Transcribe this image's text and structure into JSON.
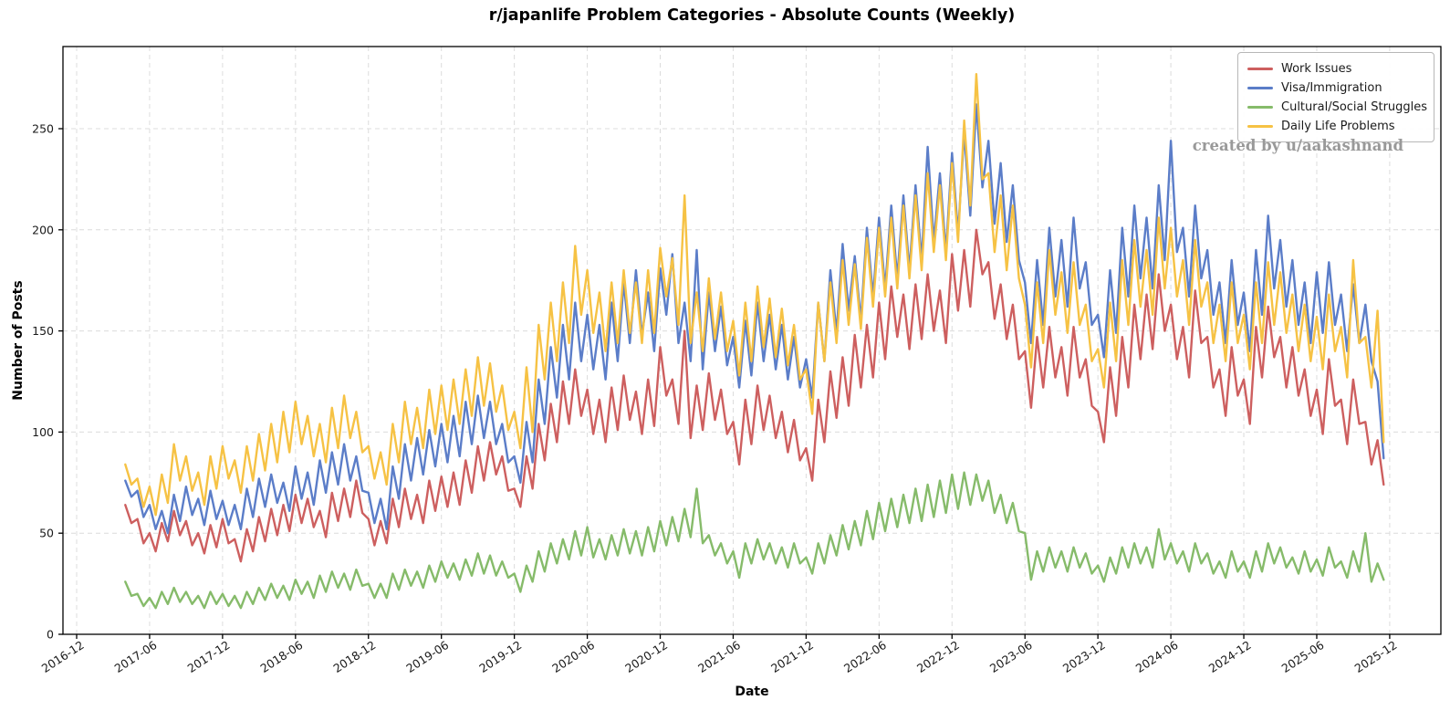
{
  "watermark": "created by u/aakashnand",
  "colors": {
    "grid": "#dcdcdc",
    "spine": "#000000",
    "tick_label": "#1a1a1a",
    "watermark": "#999999",
    "background": "#ffffff"
  },
  "chart_data": {
    "type": "line",
    "title": "r/japanlife Problem Categories - Absolute Counts (Weekly)",
    "xlabel": "Date",
    "ylabel": "Number of Posts",
    "legend_position": "upper right",
    "grid": "dashed",
    "yticks": [
      0,
      50,
      100,
      150,
      200,
      250
    ],
    "ylim": [
      0,
      291
    ],
    "x_tick_labels": [
      "2016-12",
      "2017-06",
      "2017-12",
      "2018-06",
      "2018-12",
      "2019-06",
      "2019-12",
      "2020-06",
      "2020-12",
      "2021-06",
      "2021-12",
      "2022-06",
      "2022-12",
      "2023-06",
      "2023-12",
      "2024-06",
      "2024-12",
      "2025-06",
      "2025-12"
    ],
    "x_tick_interval_months": 6,
    "x_start_month": 4,
    "x_step_months": 0.5,
    "series": [
      {
        "name": "Work Issues",
        "id": "work-issues",
        "color": "#cd5f5f",
        "values": [
          64,
          55,
          57,
          45,
          50,
          41,
          55,
          46,
          61,
          49,
          56,
          44,
          50,
          40,
          54,
          43,
          57,
          45,
          47,
          36,
          52,
          41,
          58,
          46,
          62,
          49,
          64,
          51,
          69,
          55,
          67,
          53,
          61,
          48,
          70,
          56,
          72,
          58,
          76,
          60,
          57,
          44,
          56,
          45,
          67,
          53,
          72,
          57,
          69,
          55,
          76,
          61,
          78,
          63,
          80,
          64,
          86,
          70,
          93,
          76,
          95,
          79,
          88,
          71,
          72,
          63,
          88,
          72,
          104,
          86,
          114,
          95,
          125,
          104,
          131,
          108,
          121,
          99,
          116,
          95,
          122,
          101,
          128,
          106,
          120,
          99,
          126,
          103,
          142,
          118,
          126,
          104,
          150,
          97,
          123,
          101,
          129,
          106,
          121,
          99,
          105,
          84,
          116,
          94,
          123,
          101,
          118,
          97,
          110,
          90,
          106,
          86,
          92,
          76,
          116,
          95,
          130,
          107,
          137,
          113,
          148,
          122,
          153,
          127,
          164,
          136,
          172,
          147,
          168,
          141,
          173,
          146,
          178,
          150,
          170,
          144,
          188,
          160,
          190,
          162,
          200,
          178,
          184,
          156,
          173,
          146,
          163,
          136,
          140,
          112,
          147,
          122,
          152,
          127,
          142,
          118,
          152,
          127,
          136,
          113,
          110,
          95,
          132,
          108,
          147,
          122,
          163,
          136,
          168,
          141,
          178,
          150,
          163,
          136,
          152,
          127,
          170,
          144,
          147,
          122,
          131,
          108,
          142,
          118,
          126,
          104,
          152,
          127,
          162,
          137,
          147,
          122,
          142,
          118,
          131,
          108,
          121,
          99,
          136,
          113,
          116,
          94,
          126,
          104,
          105,
          84,
          96,
          74
        ]
      },
      {
        "name": "Visa/Immigration",
        "id": "visa-immigration",
        "color": "#5b7dc8",
        "values": [
          76,
          68,
          71,
          58,
          64,
          52,
          61,
          50,
          69,
          56,
          73,
          59,
          67,
          54,
          71,
          57,
          66,
          54,
          64,
          52,
          72,
          58,
          77,
          63,
          79,
          65,
          75,
          61,
          83,
          67,
          80,
          64,
          86,
          70,
          90,
          74,
          94,
          76,
          88,
          71,
          70,
          55,
          67,
          52,
          83,
          67,
          94,
          76,
          97,
          79,
          101,
          83,
          104,
          85,
          108,
          88,
          115,
          94,
          118,
          97,
          115,
          94,
          104,
          85,
          88,
          75,
          105,
          85,
          126,
          104,
          142,
          117,
          153,
          126,
          164,
          135,
          158,
          131,
          153,
          126,
          164,
          135,
          174,
          144,
          180,
          148,
          169,
          140,
          181,
          158,
          188,
          144,
          164,
          135,
          190,
          131,
          169,
          140,
          162,
          133,
          147,
          122,
          155,
          128,
          164,
          135,
          158,
          131,
          153,
          126,
          147,
          122,
          136,
          117,
          164,
          135,
          180,
          149,
          193,
          160,
          187,
          155,
          201,
          167,
          206,
          171,
          212,
          176,
          217,
          180,
          222,
          185,
          241,
          194,
          228,
          189,
          238,
          198,
          248,
          207,
          262,
          221,
          244,
          203,
          233,
          194,
          222,
          185,
          174,
          144,
          185,
          153,
          201,
          167,
          195,
          162,
          206,
          171,
          184,
          153,
          158,
          137,
          180,
          149,
          201,
          167,
          212,
          176,
          206,
          171,
          222,
          185,
          244,
          189,
          201,
          167,
          212,
          176,
          190,
          158,
          174,
          144,
          185,
          153,
          169,
          140,
          190,
          158,
          207,
          171,
          195,
          162,
          185,
          153,
          174,
          144,
          179,
          149,
          184,
          153,
          168,
          140,
          173,
          144,
          163,
          135,
          125,
          87
        ]
      },
      {
        "name": "Cultural/Social Struggles",
        "id": "cultural-social-struggles",
        "color": "#86bb6a",
        "values": [
          26,
          19,
          20,
          14,
          18,
          13,
          21,
          15,
          23,
          16,
          21,
          15,
          19,
          13,
          21,
          15,
          20,
          14,
          19,
          13,
          21,
          15,
          23,
          17,
          25,
          18,
          24,
          17,
          27,
          20,
          26,
          18,
          29,
          21,
          31,
          23,
          30,
          22,
          32,
          24,
          25,
          18,
          25,
          18,
          30,
          22,
          32,
          24,
          31,
          23,
          34,
          26,
          36,
          28,
          35,
          27,
          37,
          29,
          40,
          30,
          39,
          29,
          36,
          28,
          30,
          21,
          34,
          26,
          41,
          31,
          45,
          35,
          47,
          37,
          51,
          39,
          53,
          38,
          47,
          37,
          49,
          39,
          52,
          40,
          51,
          39,
          53,
          41,
          56,
          44,
          58,
          46,
          62,
          48,
          72,
          45,
          49,
          39,
          45,
          35,
          41,
          28,
          45,
          35,
          47,
          37,
          45,
          35,
          43,
          33,
          45,
          35,
          38,
          30,
          45,
          35,
          49,
          39,
          54,
          42,
          56,
          44,
          61,
          47,
          65,
          51,
          67,
          53,
          69,
          55,
          72,
          56,
          74,
          58,
          76,
          60,
          79,
          62,
          80,
          64,
          79,
          66,
          76,
          60,
          69,
          55,
          65,
          51,
          50,
          27,
          41,
          31,
          43,
          33,
          41,
          31,
          43,
          33,
          40,
          30,
          34,
          26,
          38,
          30,
          43,
          33,
          45,
          35,
          43,
          33,
          52,
          37,
          45,
          35,
          41,
          31,
          45,
          35,
          40,
          30,
          36,
          28,
          41,
          31,
          36,
          28,
          41,
          31,
          45,
          35,
          43,
          33,
          38,
          30,
          41,
          31,
          37,
          29,
          43,
          33,
          36,
          28,
          41,
          31,
          50,
          26,
          35,
          27
        ]
      },
      {
        "name": "Daily Life Problems",
        "id": "daily-life-problems",
        "color": "#f6c244",
        "values": [
          84,
          74,
          77,
          63,
          73,
          59,
          79,
          65,
          94,
          76,
          88,
          71,
          80,
          64,
          88,
          72,
          93,
          77,
          86,
          70,
          93,
          76,
          99,
          81,
          104,
          85,
          110,
          90,
          115,
          94,
          108,
          88,
          104,
          85,
          112,
          92,
          118,
          97,
          110,
          90,
          93,
          77,
          90,
          74,
          104,
          85,
          115,
          94,
          112,
          92,
          121,
          99,
          123,
          101,
          126,
          104,
          131,
          108,
          137,
          113,
          134,
          110,
          123,
          101,
          110,
          92,
          132,
          100,
          153,
          126,
          164,
          135,
          174,
          144,
          192,
          158,
          180,
          149,
          169,
          140,
          174,
          144,
          180,
          149,
          174,
          144,
          180,
          149,
          191,
          167,
          186,
          153,
          217,
          144,
          169,
          140,
          176,
          146,
          169,
          140,
          155,
          128,
          164,
          135,
          172,
          142,
          166,
          137,
          161,
          133,
          153,
          126,
          131,
          109,
          164,
          135,
          174,
          144,
          185,
          153,
          183,
          151,
          196,
          162,
          201,
          167,
          206,
          171,
          212,
          176,
          217,
          180,
          228,
          189,
          222,
          185,
          233,
          194,
          254,
          212,
          277,
          225,
          228,
          189,
          217,
          180,
          212,
          176,
          163,
          132,
          174,
          144,
          190,
          158,
          179,
          149,
          184,
          153,
          163,
          135,
          141,
          122,
          164,
          135,
          185,
          153,
          195,
          162,
          190,
          158,
          206,
          171,
          201,
          167,
          185,
          153,
          195,
          162,
          174,
          144,
          163,
          135,
          174,
          144,
          158,
          131,
          174,
          144,
          184,
          153,
          179,
          149,
          168,
          140,
          163,
          135,
          157,
          131,
          168,
          140,
          152,
          127,
          185,
          144,
          147,
          122,
          160,
          95
        ]
      }
    ]
  }
}
